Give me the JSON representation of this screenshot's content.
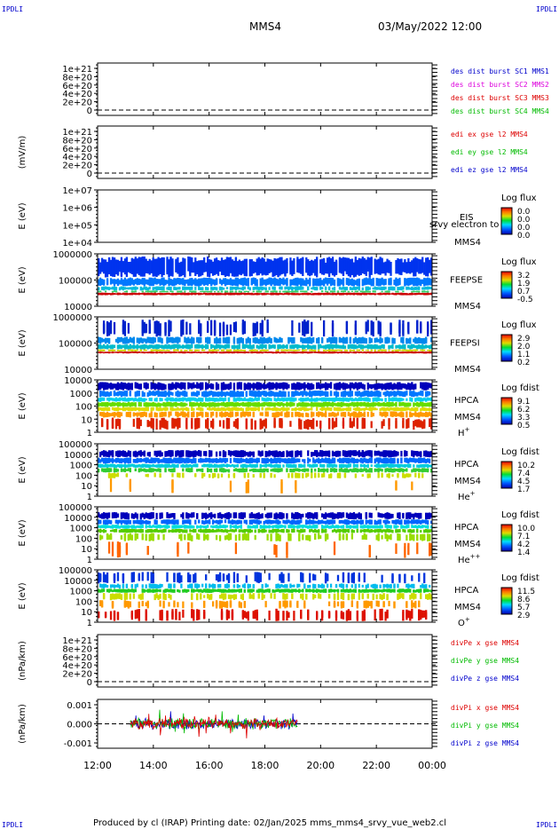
{
  "corners": {
    "tl": "IPDLI",
    "tr": "IPDLI",
    "bl": "IPDLI",
    "br": "IPDLI"
  },
  "header": {
    "spacecraft": "MMS4",
    "datetime": "03/May/2022 12:00"
  },
  "footer": {
    "text": "Produced by cl (IRAP)   Printing date: 02/Jan/2025   mms_mms4_srvy_vue_web2.cl"
  },
  "colors": {
    "red": "#dd0000",
    "green": "#00bb00",
    "blue": "#0000cc",
    "magenta": "#dd00dd"
  },
  "chart_data": {
    "type": "multi-panel time series",
    "x_ticks": [
      "12:00",
      "14:00",
      "16:00",
      "18:00",
      "20:00",
      "22:00",
      "00:00"
    ],
    "panels": [
      {
        "id": "p1",
        "kind": "line",
        "ylabel": "",
        "yticks": [
          "1e+21",
          "8e+20",
          "6e+20",
          "4e+20",
          "2e+20",
          "0"
        ],
        "legend": [
          {
            "text": "des dist burst SC1 MMS1",
            "color": "#0000cc"
          },
          {
            "text": "des dist burst SC2 MMS2",
            "color": "#dd00dd"
          },
          {
            "text": "des dist burst SC3 MMS3",
            "color": "#dd0000"
          },
          {
            "text": "des dist burst SC4 MMS4",
            "color": "#00bb00"
          }
        ]
      },
      {
        "id": "p2",
        "kind": "line",
        "ylabel": "(mV/m)",
        "yticks": [
          "1e+21",
          "8e+20",
          "6e+20",
          "4e+20",
          "2e+20",
          "0"
        ],
        "legend": [
          {
            "text": "edi ex gse l2 MMS4",
            "color": "#dd0000"
          },
          {
            "text": "edi ey gse l2 MMS4",
            "color": "#00bb00"
          },
          {
            "text": "edi ez gse l2 MMS4",
            "color": "#0000cc"
          }
        ]
      },
      {
        "id": "p3",
        "kind": "spectrogram",
        "ylabel": "E (eV)",
        "yticks": [
          "1e+07",
          "1e+06",
          "1e+05",
          "1e+04"
        ],
        "label": [
          "EIS",
          "MMS4"
        ],
        "overlay": "srvy electron to",
        "cb_title": "Log flux",
        "cb_ticks": [
          "0.0",
          "0.0",
          "0.0",
          "0.0"
        ]
      },
      {
        "id": "p4",
        "kind": "spectrogram",
        "ylabel": "E (eV)",
        "yticks": [
          "1000000",
          "100000",
          "10000"
        ],
        "label": [
          "FEEPSE",
          "MMS4"
        ],
        "cb_title": "Log flux",
        "cb_ticks": [
          "3.2",
          "1.9",
          "0.7",
          "-0.5"
        ]
      },
      {
        "id": "p5",
        "kind": "spectrogram",
        "ylabel": "E (eV)",
        "yticks": [
          "1000000",
          "100000",
          "10000"
        ],
        "label": [
          "FEEPSI",
          "MMS4"
        ],
        "cb_title": "Log flux",
        "cb_ticks": [
          "2.9",
          "2.0",
          "1.1",
          "0.2"
        ]
      },
      {
        "id": "p6",
        "kind": "spectrogram",
        "ylabel": "E (eV)",
        "yticks": [
          "10000",
          "1000",
          "100",
          "10",
          "1"
        ],
        "label": [
          "HPCA",
          "MMS4"
        ],
        "species": "H",
        "sup": "+",
        "cb_title": "Log fdist",
        "cb_ticks": [
          "9.1",
          "6.2",
          "3.3",
          "0.5"
        ]
      },
      {
        "id": "p7",
        "kind": "spectrogram",
        "ylabel": "E (eV)",
        "yticks": [
          "100000",
          "10000",
          "1000",
          "100",
          "10",
          "1"
        ],
        "label": [
          "HPCA",
          "MMS4"
        ],
        "species": "He",
        "sup": "+",
        "cb_title": "Log fdist",
        "cb_ticks": [
          "10.2",
          "7.4",
          "4.5",
          "1.7"
        ]
      },
      {
        "id": "p8",
        "kind": "spectrogram",
        "ylabel": "E (eV)",
        "yticks": [
          "100000",
          "10000",
          "1000",
          "100",
          "10",
          "1"
        ],
        "label": [
          "HPCA",
          "MMS4"
        ],
        "species": "He",
        "sup": "++",
        "cb_title": "Log fdist",
        "cb_ticks": [
          "10.0",
          "7.1",
          "4.2",
          "1.4"
        ]
      },
      {
        "id": "p9",
        "kind": "spectrogram",
        "ylabel": "E (eV)",
        "yticks": [
          "100000",
          "10000",
          "1000",
          "100",
          "10",
          "1"
        ],
        "label": [
          "HPCA",
          "MMS4"
        ],
        "species": "O",
        "sup": "+",
        "cb_title": "Log fdist",
        "cb_ticks": [
          "11.5",
          "8.6",
          "5.7",
          "2.9"
        ]
      },
      {
        "id": "p10",
        "kind": "line",
        "ylabel": "(nPa/km)",
        "yticks": [
          "1e+21",
          "8e+20",
          "6e+20",
          "4e+20",
          "2e+20",
          "0"
        ],
        "legend": [
          {
            "text": "divPe x gse MMS4",
            "color": "#dd0000"
          },
          {
            "text": "divPe y gse MMS4",
            "color": "#00bb00"
          },
          {
            "text": "divPe z gse MMS4",
            "color": "#0000cc"
          }
        ]
      },
      {
        "id": "p11",
        "kind": "line",
        "ylabel": "(nPa/km)",
        "yticks": [
          "0.001",
          "0.000",
          "-0.001"
        ],
        "legend": [
          {
            "text": "divPi x gse MMS4",
            "color": "#dd0000"
          },
          {
            "text": "divPi y gse MMS4",
            "color": "#00bb00"
          },
          {
            "text": "divPi z gse MMS4",
            "color": "#0000cc"
          }
        ],
        "data_span": [
          "13:10",
          "19:10"
        ]
      }
    ]
  }
}
